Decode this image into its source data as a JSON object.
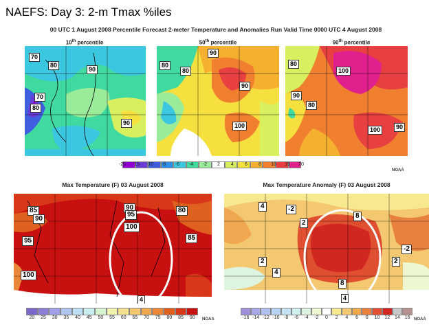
{
  "slide_title": "NAEFS: Day 3: 2-m Tmax %iles",
  "top_panel": {
    "header": "00 UTC 1 August 2008 Percentile Forecast 2-meter Temperature and Anomalies Run Valid Time 0000 UTC  4 August 2008",
    "maps": [
      {
        "title_pre": "10",
        "title_sup": "th",
        "title_post": " percentile",
        "labels": [
          "70",
          "80",
          "90",
          "70",
          "80",
          "90"
        ]
      },
      {
        "title_pre": "50",
        "title_sup": "th",
        "title_post": " percentile",
        "labels": [
          "90",
          "80",
          "80",
          "90",
          "100"
        ]
      },
      {
        "title_pre": "90",
        "title_sup": "th",
        "title_post": " percentile",
        "labels": [
          "80",
          "100",
          "90",
          "80",
          "100",
          "90"
        ]
      }
    ],
    "legend_values": [
      "-20",
      "-15",
      "-10",
      "-8",
      "-6",
      "-4",
      "-2",
      "2",
      "4",
      "6",
      "8",
      "10",
      "15",
      "20"
    ],
    "legend_colors": [
      "#9400d3",
      "#6a3dd8",
      "#3f5fe0",
      "#2f8fe8",
      "#3cc7e0",
      "#40d9a0",
      "#9aeb9a",
      "#ffffff",
      "#d8f060",
      "#f5e040",
      "#f5b030",
      "#f08030",
      "#e84040",
      "#e0208c"
    ],
    "noaa": "NOAA"
  },
  "bottom_left": {
    "title": "Max Temperature (F) 03 August 2008",
    "labels": [
      "85",
      "90",
      "90",
      "95",
      "80",
      "100",
      "95",
      "85",
      "100",
      "4"
    ],
    "legend_values": [
      "20",
      "25",
      "30",
      "35",
      "40",
      "45",
      "50",
      "55",
      "60",
      "65",
      "70",
      "75",
      "80",
      "85",
      "90"
    ],
    "legend_colors": [
      "#7b68c8",
      "#8c7fd8",
      "#9fa0e8",
      "#b0c4f0",
      "#bde0f4",
      "#c9f0f0",
      "#d8f4d0",
      "#f0f4b0",
      "#f4e090",
      "#f4c870",
      "#f0a850",
      "#e88838",
      "#e06020",
      "#d83818",
      "#c81010"
    ],
    "noaa": "NOAA"
  },
  "bottom_right": {
    "title": "Max Temperature Anomaly (F) 03 August 2008",
    "labels": [
      "4",
      "-2",
      "2",
      "8",
      "-2",
      "2",
      "4",
      "8",
      "4",
      "2"
    ],
    "legend_values": [
      "-16",
      "-14",
      "-12",
      "-10",
      "-8",
      "-6",
      "-4",
      "-2",
      "0",
      "2",
      "4",
      "6",
      "8",
      "10",
      "12",
      "14",
      "16"
    ],
    "legend_colors": [
      "#9f8fd8",
      "#a8a8e8",
      "#b0c0f0",
      "#b8d4f4",
      "#c4e4f4",
      "#d0f0f0",
      "#ddf4e0",
      "#eef8d0",
      "#ffffff",
      "#f8e890",
      "#f4c870",
      "#f0a850",
      "#e88040",
      "#e05030",
      "#d02820",
      "#c8c8c8",
      "#b89090"
    ],
    "noaa": "NOAA"
  }
}
